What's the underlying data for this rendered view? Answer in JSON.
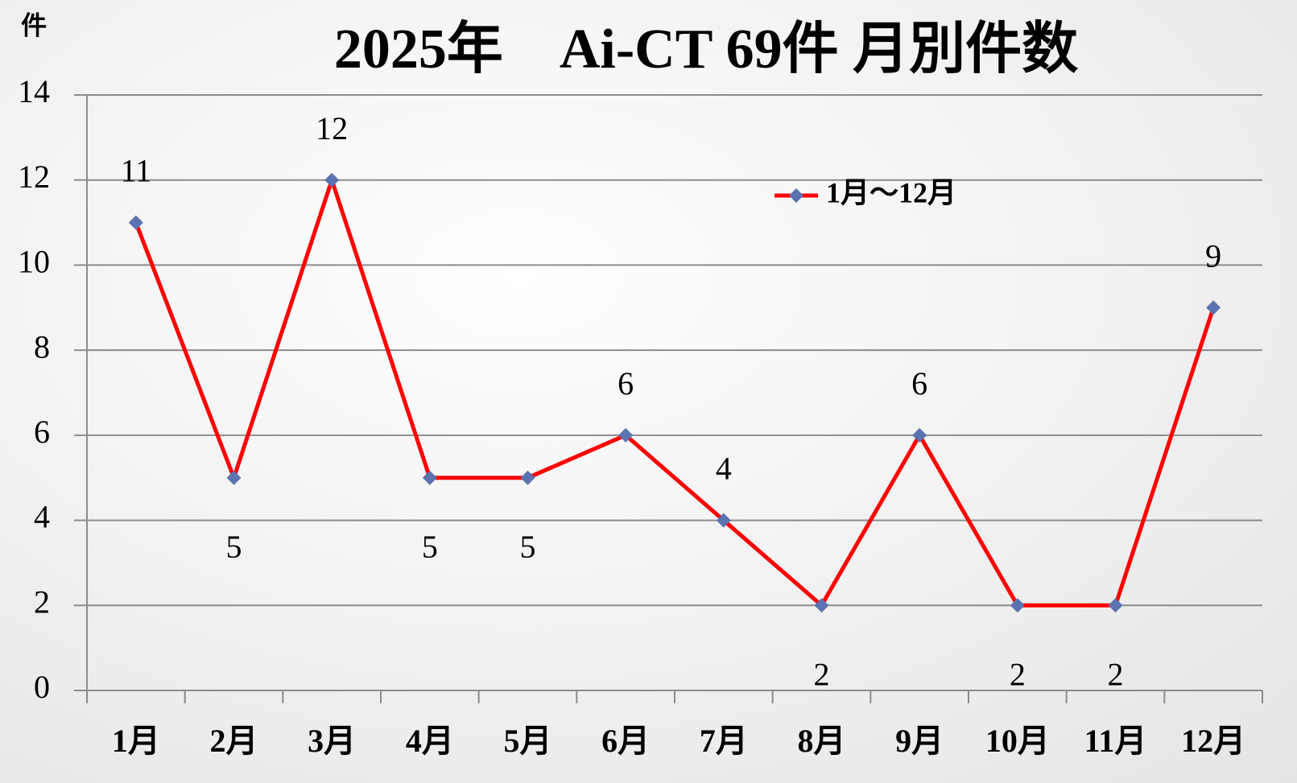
{
  "chart_data": {
    "type": "line",
    "title": "2025年　Ai-CT 69件  月別件数",
    "y_label": "件",
    "categories": [
      "1月",
      "2月",
      "3月",
      "4月",
      "5月",
      "6月",
      "7月",
      "8月",
      "9月",
      "10月",
      "11月",
      "12月"
    ],
    "series": [
      {
        "name": "1月～12月",
        "color": "#ff0000",
        "marker_color": "#5b73b0",
        "values": [
          11,
          5,
          12,
          5,
          5,
          6,
          4,
          2,
          6,
          2,
          2,
          9
        ]
      }
    ],
    "ylim": [
      0,
      14
    ],
    "yticks": [
      0,
      2,
      4,
      6,
      8,
      10,
      12,
      14
    ],
    "grid": true,
    "legend": "upper right"
  }
}
